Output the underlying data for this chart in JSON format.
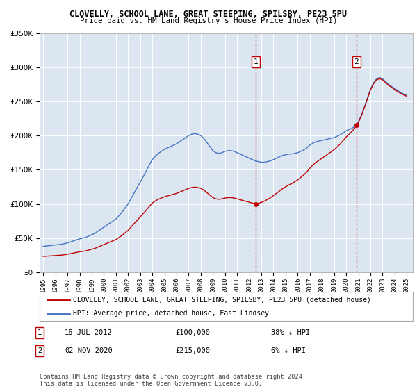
{
  "title": "CLOVELLY, SCHOOL LANE, GREAT STEEPING, SPILSBY, PE23 5PU",
  "subtitle": "Price paid vs. HM Land Registry's House Price Index (HPI)",
  "legend_line1": "CLOVELLY, SCHOOL LANE, GREAT STEEPING, SPILSBY, PE23 5PU (detached house)",
  "legend_line2": "HPI: Average price, detached house, East Lindsey",
  "sale1_date": "16-JUL-2012",
  "sale1_price": 100000,
  "sale1_label": "38% ↓ HPI",
  "sale2_date": "02-NOV-2020",
  "sale2_price": 215000,
  "sale2_label": "6% ↓ HPI",
  "footer": "Contains HM Land Registry data © Crown copyright and database right 2024.\nThis data is licensed under the Open Government Licence v3.0.",
  "hpi_color": "#4472C4",
  "price_color": "#C00000",
  "dashed_line_color": "#C00000",
  "plot_bg_color": "#DCE6F1",
  "ylim": [
    0,
    350000
  ],
  "yticks": [
    0,
    50000,
    100000,
    150000,
    200000,
    250000,
    300000,
    350000
  ],
  "sale1_year": 2012.54,
  "sale2_year": 2020.84
}
